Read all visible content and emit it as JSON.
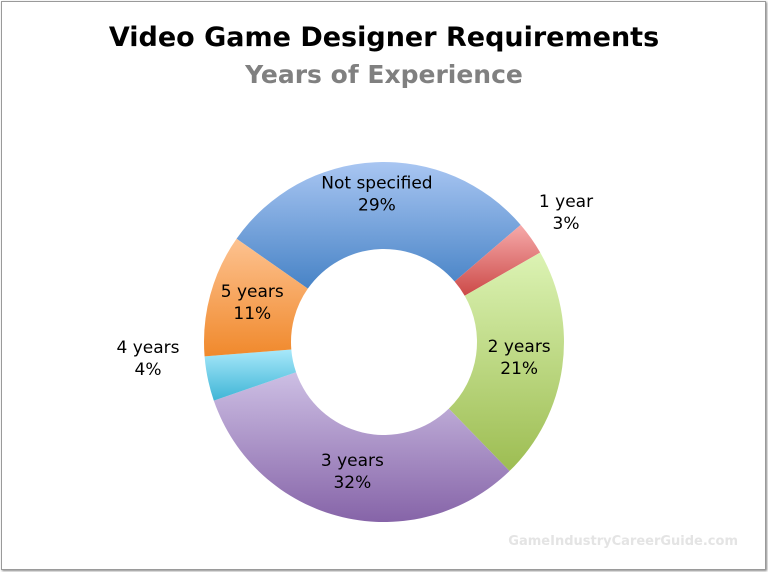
{
  "chart_data": {
    "type": "pie",
    "variant": "donut",
    "title": "Video Game Designer Requirements",
    "subtitle": "Years of Experience",
    "slices": [
      {
        "label": "Not specified",
        "value": 29,
        "value_label": "29%",
        "color_light": "#a9c6f2",
        "color_dark": "#4783c6"
      },
      {
        "label": "1 year",
        "value": 3,
        "value_label": "3%",
        "color_light": "#f6aaaa",
        "color_dark": "#cc4a48"
      },
      {
        "label": "2 years",
        "value": 21,
        "value_label": "21%",
        "color_light": "#dcf3b4",
        "color_dark": "#9dbd52"
      },
      {
        "label": "3 years",
        "value": 32,
        "value_label": "32%",
        "color_light": "#cdbfe4",
        "color_dark": "#8664a8"
      },
      {
        "label": "4 years",
        "value": 4,
        "value_label": "4%",
        "color_light": "#a8e8fa",
        "color_dark": "#3fb5d6"
      },
      {
        "label": "5 years",
        "value": 11,
        "value_label": "11%",
        "color_light": "#fdc290",
        "color_dark": "#f0892c"
      }
    ]
  },
  "watermark": "GameIndustryCareerGuide.com"
}
